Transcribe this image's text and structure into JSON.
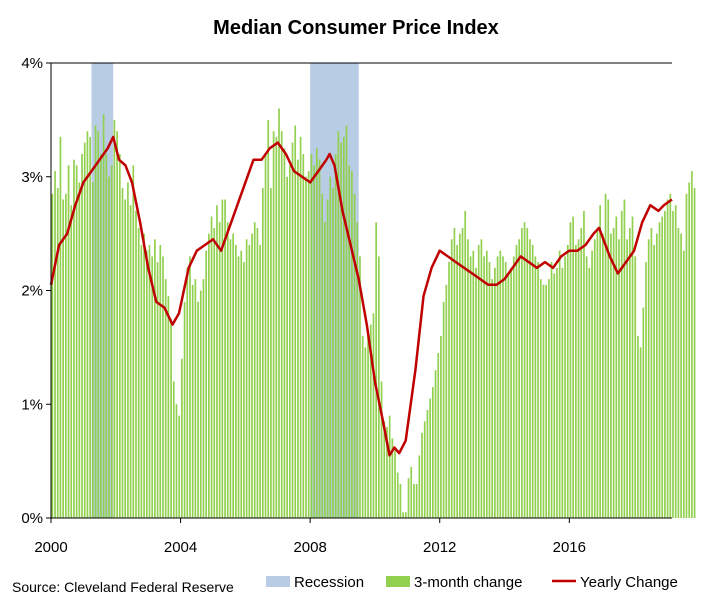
{
  "chart_data": {
    "type": "bar",
    "title": "Median Consumer Price Index",
    "source": "Source: Cleveland Federal Reserve",
    "xlabel": "",
    "ylabel": "",
    "xlim": [
      2000.0,
      2019.17
    ],
    "ylim": [
      0,
      4
    ],
    "x_ticks": [
      2000,
      2004,
      2008,
      2012,
      2016
    ],
    "x_tick_labels": [
      "2000",
      "2004",
      "2008",
      "2012",
      "2016"
    ],
    "y_ticks": [
      0,
      1,
      2,
      3,
      4
    ],
    "y_tick_labels": [
      "0%",
      "1%",
      "2%",
      "3%",
      "4%"
    ],
    "grid": "horizontal at 4% only",
    "legend": {
      "position": "bottom",
      "items": [
        {
          "label": "Recession",
          "kind": "area",
          "color": "#b8cce4"
        },
        {
          "label": "3-month change",
          "kind": "bar",
          "color": "#92d050"
        },
        {
          "label": "Yearly Change",
          "kind": "line",
          "color": "#c00000"
        }
      ]
    },
    "recessions": [
      [
        2001.25,
        2001.92
      ],
      [
        2008.0,
        2009.5
      ]
    ],
    "series": [
      {
        "name": "3-month change",
        "type": "bar",
        "color": "#92d050",
        "x_start": 2000.0,
        "step": 0.0833,
        "values": [
          2.85,
          3.05,
          2.9,
          3.35,
          2.8,
          2.85,
          3.1,
          2.75,
          3.15,
          3.1,
          2.95,
          3.2,
          3.3,
          3.4,
          3.35,
          2.95,
          3.45,
          3.4,
          3.2,
          3.55,
          3.2,
          3.0,
          3.1,
          3.5,
          3.4,
          3.2,
          2.9,
          2.8,
          2.95,
          2.75,
          3.1,
          2.7,
          2.55,
          2.4,
          2.5,
          2.35,
          2.4,
          2.3,
          2.45,
          2.25,
          2.4,
          2.3,
          2.1,
          1.95,
          1.75,
          1.2,
          1.0,
          0.9,
          1.4,
          1.9,
          2.2,
          2.3,
          2.05,
          2.1,
          1.9,
          2.0,
          2.1,
          2.35,
          2.5,
          2.65,
          2.55,
          2.75,
          2.6,
          2.8,
          2.8,
          2.6,
          2.45,
          2.5,
          2.4,
          2.3,
          2.35,
          2.25,
          2.45,
          2.4,
          2.5,
          2.6,
          2.55,
          2.4,
          2.9,
          3.2,
          3.5,
          2.9,
          3.4,
          3.35,
          3.6,
          3.4,
          3.25,
          3.0,
          3.1,
          3.3,
          3.45,
          3.15,
          3.35,
          3.2,
          3.0,
          3.05,
          3.2,
          3.1,
          3.25,
          3.15,
          2.85,
          2.6,
          2.8,
          3.0,
          2.9,
          3.2,
          3.4,
          3.3,
          3.35,
          3.45,
          3.1,
          3.05,
          2.85,
          2.6,
          2.3,
          1.6,
          1.5,
          1.6,
          1.7,
          1.8,
          2.6,
          2.3,
          1.2,
          0.85,
          0.8,
          0.9,
          0.7,
          0.6,
          0.4,
          0.3,
          0.05,
          0.05,
          0.35,
          0.45,
          0.3,
          0.3,
          0.55,
          0.75,
          0.85,
          0.95,
          1.05,
          1.15,
          1.3,
          1.45,
          1.6,
          1.9,
          2.05,
          2.25,
          2.45,
          2.55,
          2.4,
          2.5,
          2.55,
          2.7,
          2.45,
          2.3,
          2.35,
          2.2,
          2.4,
          2.45,
          2.3,
          2.35,
          2.25,
          2.1,
          2.2,
          2.3,
          2.35,
          2.3,
          2.25,
          2.15,
          2.2,
          2.3,
          2.4,
          2.45,
          2.55,
          2.6,
          2.55,
          2.45,
          2.4,
          2.3,
          2.25,
          2.1,
          2.05,
          2.05,
          2.1,
          2.25,
          2.15,
          2.2,
          2.35,
          2.2,
          2.3,
          2.4,
          2.6,
          2.65,
          2.4,
          2.45,
          2.55,
          2.7,
          2.3,
          2.2,
          2.35,
          2.45,
          2.55,
          2.75,
          2.5,
          2.85,
          2.8,
          2.5,
          2.55,
          2.65,
          2.45,
          2.7,
          2.8,
          2.45,
          2.55,
          2.65,
          2.3,
          1.6,
          1.5,
          1.85,
          2.25,
          2.45,
          2.55,
          2.4,
          2.5,
          2.6,
          2.65,
          2.7,
          2.8,
          2.85,
          2.7,
          2.75,
          2.55,
          2.5,
          2.35,
          2.85,
          2.95,
          3.05,
          2.9
        ]
      },
      {
        "name": "Yearly Change",
        "type": "line",
        "color": "#c00000",
        "points": [
          [
            2000.0,
            2.05
          ],
          [
            2000.25,
            2.4
          ],
          [
            2000.5,
            2.5
          ],
          [
            2000.75,
            2.75
          ],
          [
            2001.0,
            2.95
          ],
          [
            2001.25,
            3.05
          ],
          [
            2001.5,
            3.15
          ],
          [
            2001.75,
            3.25
          ],
          [
            2001.92,
            3.35
          ],
          [
            2002.1,
            3.15
          ],
          [
            2002.3,
            3.1
          ],
          [
            2002.5,
            2.95
          ],
          [
            2002.75,
            2.6
          ],
          [
            2003.0,
            2.2
          ],
          [
            2003.25,
            1.9
          ],
          [
            2003.5,
            1.85
          ],
          [
            2003.75,
            1.7
          ],
          [
            2003.95,
            1.8
          ],
          [
            2004.25,
            2.2
          ],
          [
            2004.5,
            2.35
          ],
          [
            2004.75,
            2.4
          ],
          [
            2005.0,
            2.45
          ],
          [
            2005.25,
            2.35
          ],
          [
            2005.5,
            2.55
          ],
          [
            2005.75,
            2.75
          ],
          [
            2006.0,
            2.95
          ],
          [
            2006.25,
            3.15
          ],
          [
            2006.5,
            3.15
          ],
          [
            2006.75,
            3.25
          ],
          [
            2007.0,
            3.3
          ],
          [
            2007.25,
            3.2
          ],
          [
            2007.5,
            3.05
          ],
          [
            2007.75,
            3.0
          ],
          [
            2008.0,
            2.95
          ],
          [
            2008.25,
            3.05
          ],
          [
            2008.5,
            3.15
          ],
          [
            2008.6,
            3.2
          ],
          [
            2008.75,
            3.1
          ],
          [
            2009.0,
            2.7
          ],
          [
            2009.25,
            2.4
          ],
          [
            2009.5,
            2.1
          ],
          [
            2009.75,
            1.7
          ],
          [
            2010.0,
            1.2
          ],
          [
            2010.25,
            0.85
          ],
          [
            2010.45,
            0.55
          ],
          [
            2010.6,
            0.62
          ],
          [
            2010.75,
            0.57
          ],
          [
            2010.95,
            0.68
          ],
          [
            2011.25,
            1.3
          ],
          [
            2011.5,
            1.95
          ],
          [
            2011.75,
            2.2
          ],
          [
            2012.0,
            2.35
          ],
          [
            2012.25,
            2.3
          ],
          [
            2012.5,
            2.25
          ],
          [
            2012.75,
            2.2
          ],
          [
            2013.0,
            2.15
          ],
          [
            2013.25,
            2.1
          ],
          [
            2013.5,
            2.05
          ],
          [
            2013.75,
            2.05
          ],
          [
            2014.0,
            2.1
          ],
          [
            2014.25,
            2.2
          ],
          [
            2014.5,
            2.3
          ],
          [
            2014.75,
            2.25
          ],
          [
            2015.0,
            2.2
          ],
          [
            2015.25,
            2.25
          ],
          [
            2015.5,
            2.2
          ],
          [
            2015.75,
            2.3
          ],
          [
            2016.0,
            2.35
          ],
          [
            2016.25,
            2.35
          ],
          [
            2016.5,
            2.4
          ],
          [
            2016.75,
            2.5
          ],
          [
            2016.92,
            2.55
          ],
          [
            2017.25,
            2.3
          ],
          [
            2017.5,
            2.15
          ],
          [
            2017.75,
            2.25
          ],
          [
            2018.0,
            2.35
          ],
          [
            2018.25,
            2.6
          ],
          [
            2018.5,
            2.75
          ],
          [
            2018.75,
            2.7
          ],
          [
            2018.92,
            2.75
          ],
          [
            2019.17,
            2.8
          ]
        ]
      }
    ]
  }
}
